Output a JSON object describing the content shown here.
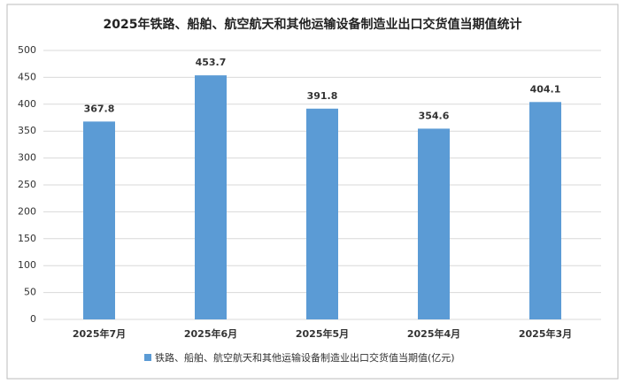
{
  "chart_data": {
    "type": "bar",
    "title": "2025年铁路、船舶、航空航天和其他运输设备制造业出口交货值当期值统计",
    "categories": [
      "2025年7月",
      "2025年6月",
      "2025年5月",
      "2025年4月",
      "2025年3月"
    ],
    "series": [
      {
        "name": "铁路、船舶、航空航天和其他运输设备制造业出口交货值当期值(亿元)",
        "color": "#5b9bd5",
        "values": [
          367.8,
          453.7,
          391.8,
          354.6,
          404.1
        ]
      }
    ],
    "ylim": [
      0,
      500
    ],
    "yticks": [
      0,
      50,
      100,
      150,
      200,
      250,
      300,
      350,
      400,
      450,
      500
    ],
    "grid": true,
    "legend": "bottom"
  }
}
